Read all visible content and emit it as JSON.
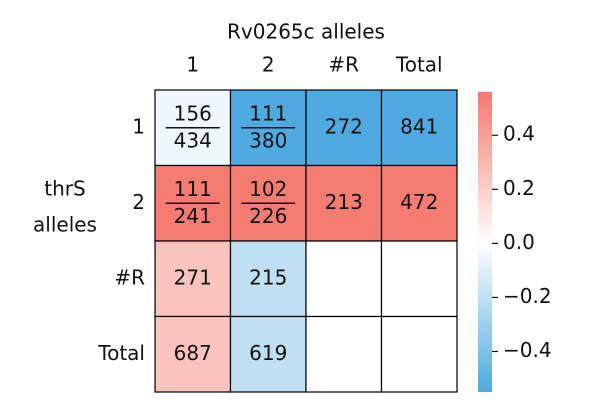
{
  "chart_data": {
    "type": "heatmap",
    "xlabel": "Rv0265c alleles",
    "ylabel": [
      "thrS",
      "alleles"
    ],
    "columns": [
      "1",
      "2",
      "#R",
      "Total"
    ],
    "rows": [
      "1",
      "2",
      "#R",
      "Total"
    ],
    "values": [
      [
        -0.05,
        -0.55,
        -0.55,
        -0.55
      ],
      [
        0.55,
        0.55,
        0.55,
        0.55
      ],
      [
        0.25,
        -0.2,
        null,
        null
      ],
      [
        0.25,
        -0.2,
        null,
        null
      ]
    ],
    "annotations": [
      [
        {
          "numerator": 156,
          "denominator": 434
        },
        {
          "numerator": 111,
          "denominator": 380
        },
        272,
        841
      ],
      [
        {
          "numerator": 111,
          "denominator": 241
        },
        {
          "numerator": 102,
          "denominator": 226
        },
        213,
        472
      ],
      [
        271,
        215,
        null,
        null
      ],
      [
        687,
        619,
        null,
        null
      ]
    ],
    "colors": {
      "negative": "#4eaadf",
      "center": "#ffffff",
      "positive": "#f47a6e"
    },
    "clim": [
      -0.55,
      0.56
    ],
    "cticks": [
      {
        "value": -0.4,
        "label": "−0.4"
      },
      {
        "value": -0.2,
        "label": "−0.2"
      },
      {
        "value": 0,
        "label": "0.0"
      },
      0.2,
      0.4
    ]
  }
}
